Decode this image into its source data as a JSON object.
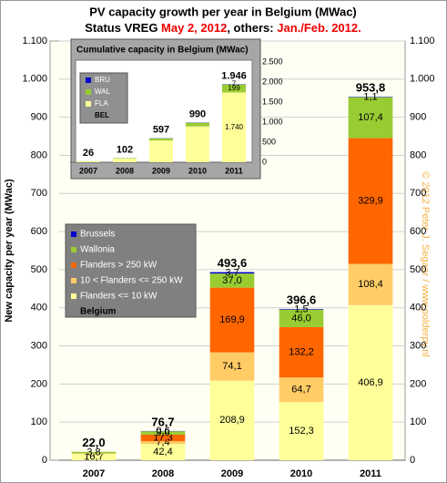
{
  "chart_data": {
    "type": "bar",
    "stacked": true,
    "title": "PV capacity growth  per year in Belgium (MWac)",
    "subtitle": [
      "Status VREG ",
      "May 2, 2012",
      ", others: ",
      "Jan./Feb. 2012."
    ],
    "ylabel": "New capacity per year (MWac)",
    "watermark": "© 2012 Peter J. Segaar / www.polderpv.nl",
    "categories": [
      "2007",
      "2008",
      "2009",
      "2010",
      "2011"
    ],
    "series": [
      {
        "name": "Flanders <= 10 kW",
        "color": "#ffff99",
        "values": [
          16.7,
          42.4,
          208.9,
          152.3,
          406.9
        ],
        "value_labels": [
          "16,7",
          "42,4",
          "208,9",
          "152,3",
          "406,9"
        ]
      },
      {
        "name": "10 < Flanders <= 250 kW",
        "color": "#ffcc66",
        "values": [
          1.5,
          7.4,
          74.1,
          64.7,
          108.4
        ],
        "value_labels": [
          null,
          "7,4",
          "74,1",
          "64,7",
          "108,4"
        ]
      },
      {
        "name": "Flanders > 250 kW",
        "color": "#ff6600",
        "values": [
          0,
          17.3,
          169.9,
          132.2,
          329.9
        ],
        "value_labels": [
          null,
          "17,3",
          "169,9",
          "132,2",
          "329,9"
        ]
      },
      {
        "name": "Wallonia",
        "color": "#99cc33",
        "values": [
          3.8,
          9.0,
          37.0,
          46.0,
          107.4
        ],
        "value_labels": [
          "3,8",
          "9,0",
          "37,0",
          "46,0",
          "107,4"
        ]
      },
      {
        "name": "Brussels",
        "color": "#0000cc",
        "values": [
          0,
          0.6,
          3.7,
          1.5,
          1.1
        ],
        "value_labels": [
          null,
          "0,6",
          "3,7",
          "1,5",
          "1,1"
        ]
      }
    ],
    "totals": {
      "values": [
        22.0,
        76.7,
        493.6,
        396.6,
        953.8
      ],
      "value_labels": [
        "22,0",
        "76,7",
        "493,6",
        "396,6",
        "953,8"
      ]
    },
    "legend_title": "Belgium",
    "ylim": [
      0,
      1100
    ],
    "yticks": [
      0,
      100,
      200,
      300,
      400,
      500,
      600,
      700,
      800,
      900,
      {
        "value": 1000,
        "label": "1.000"
      },
      {
        "value": 1100,
        "label": "1.100"
      }
    ],
    "grid": true,
    "inset": {
      "type": "bar",
      "title": "Cumulative capacity in Belgium (MWac)",
      "categories": [
        "2007",
        "2008",
        "2009",
        "2010",
        "2011"
      ],
      "series": [
        {
          "name": "FLA",
          "color": "#ffff99",
          "values": [
            22,
            89,
            542,
            891,
            1740
          ],
          "value_labels": [
            null,
            null,
            null,
            null,
            "1.740"
          ]
        },
        {
          "name": "WAL",
          "color": "#99cc33",
          "values": [
            4,
            12,
            50,
            93,
            199
          ],
          "value_labels": [
            null,
            null,
            null,
            null,
            "199"
          ]
        },
        {
          "name": "BRU",
          "color": "#0000cc",
          "values": [
            0,
            1,
            5,
            6,
            7
          ],
          "value_labels": [
            null,
            null,
            null,
            null,
            "7"
          ]
        }
      ],
      "totals": {
        "values": [
          26,
          102,
          597,
          990,
          1946
        ],
        "value_labels": [
          "26",
          "102",
          "597",
          "990",
          "1.946"
        ]
      },
      "legend_title": "BEL",
      "ylim": [
        0,
        2500
      ],
      "yticks": [
        0,
        500,
        {
          "value": 1000,
          "label": "1.000"
        },
        {
          "value": 1500,
          "label": "1.500"
        },
        {
          "value": 2000,
          "label": "2.000"
        },
        {
          "value": 2500,
          "label": "2.500"
        }
      ]
    }
  }
}
